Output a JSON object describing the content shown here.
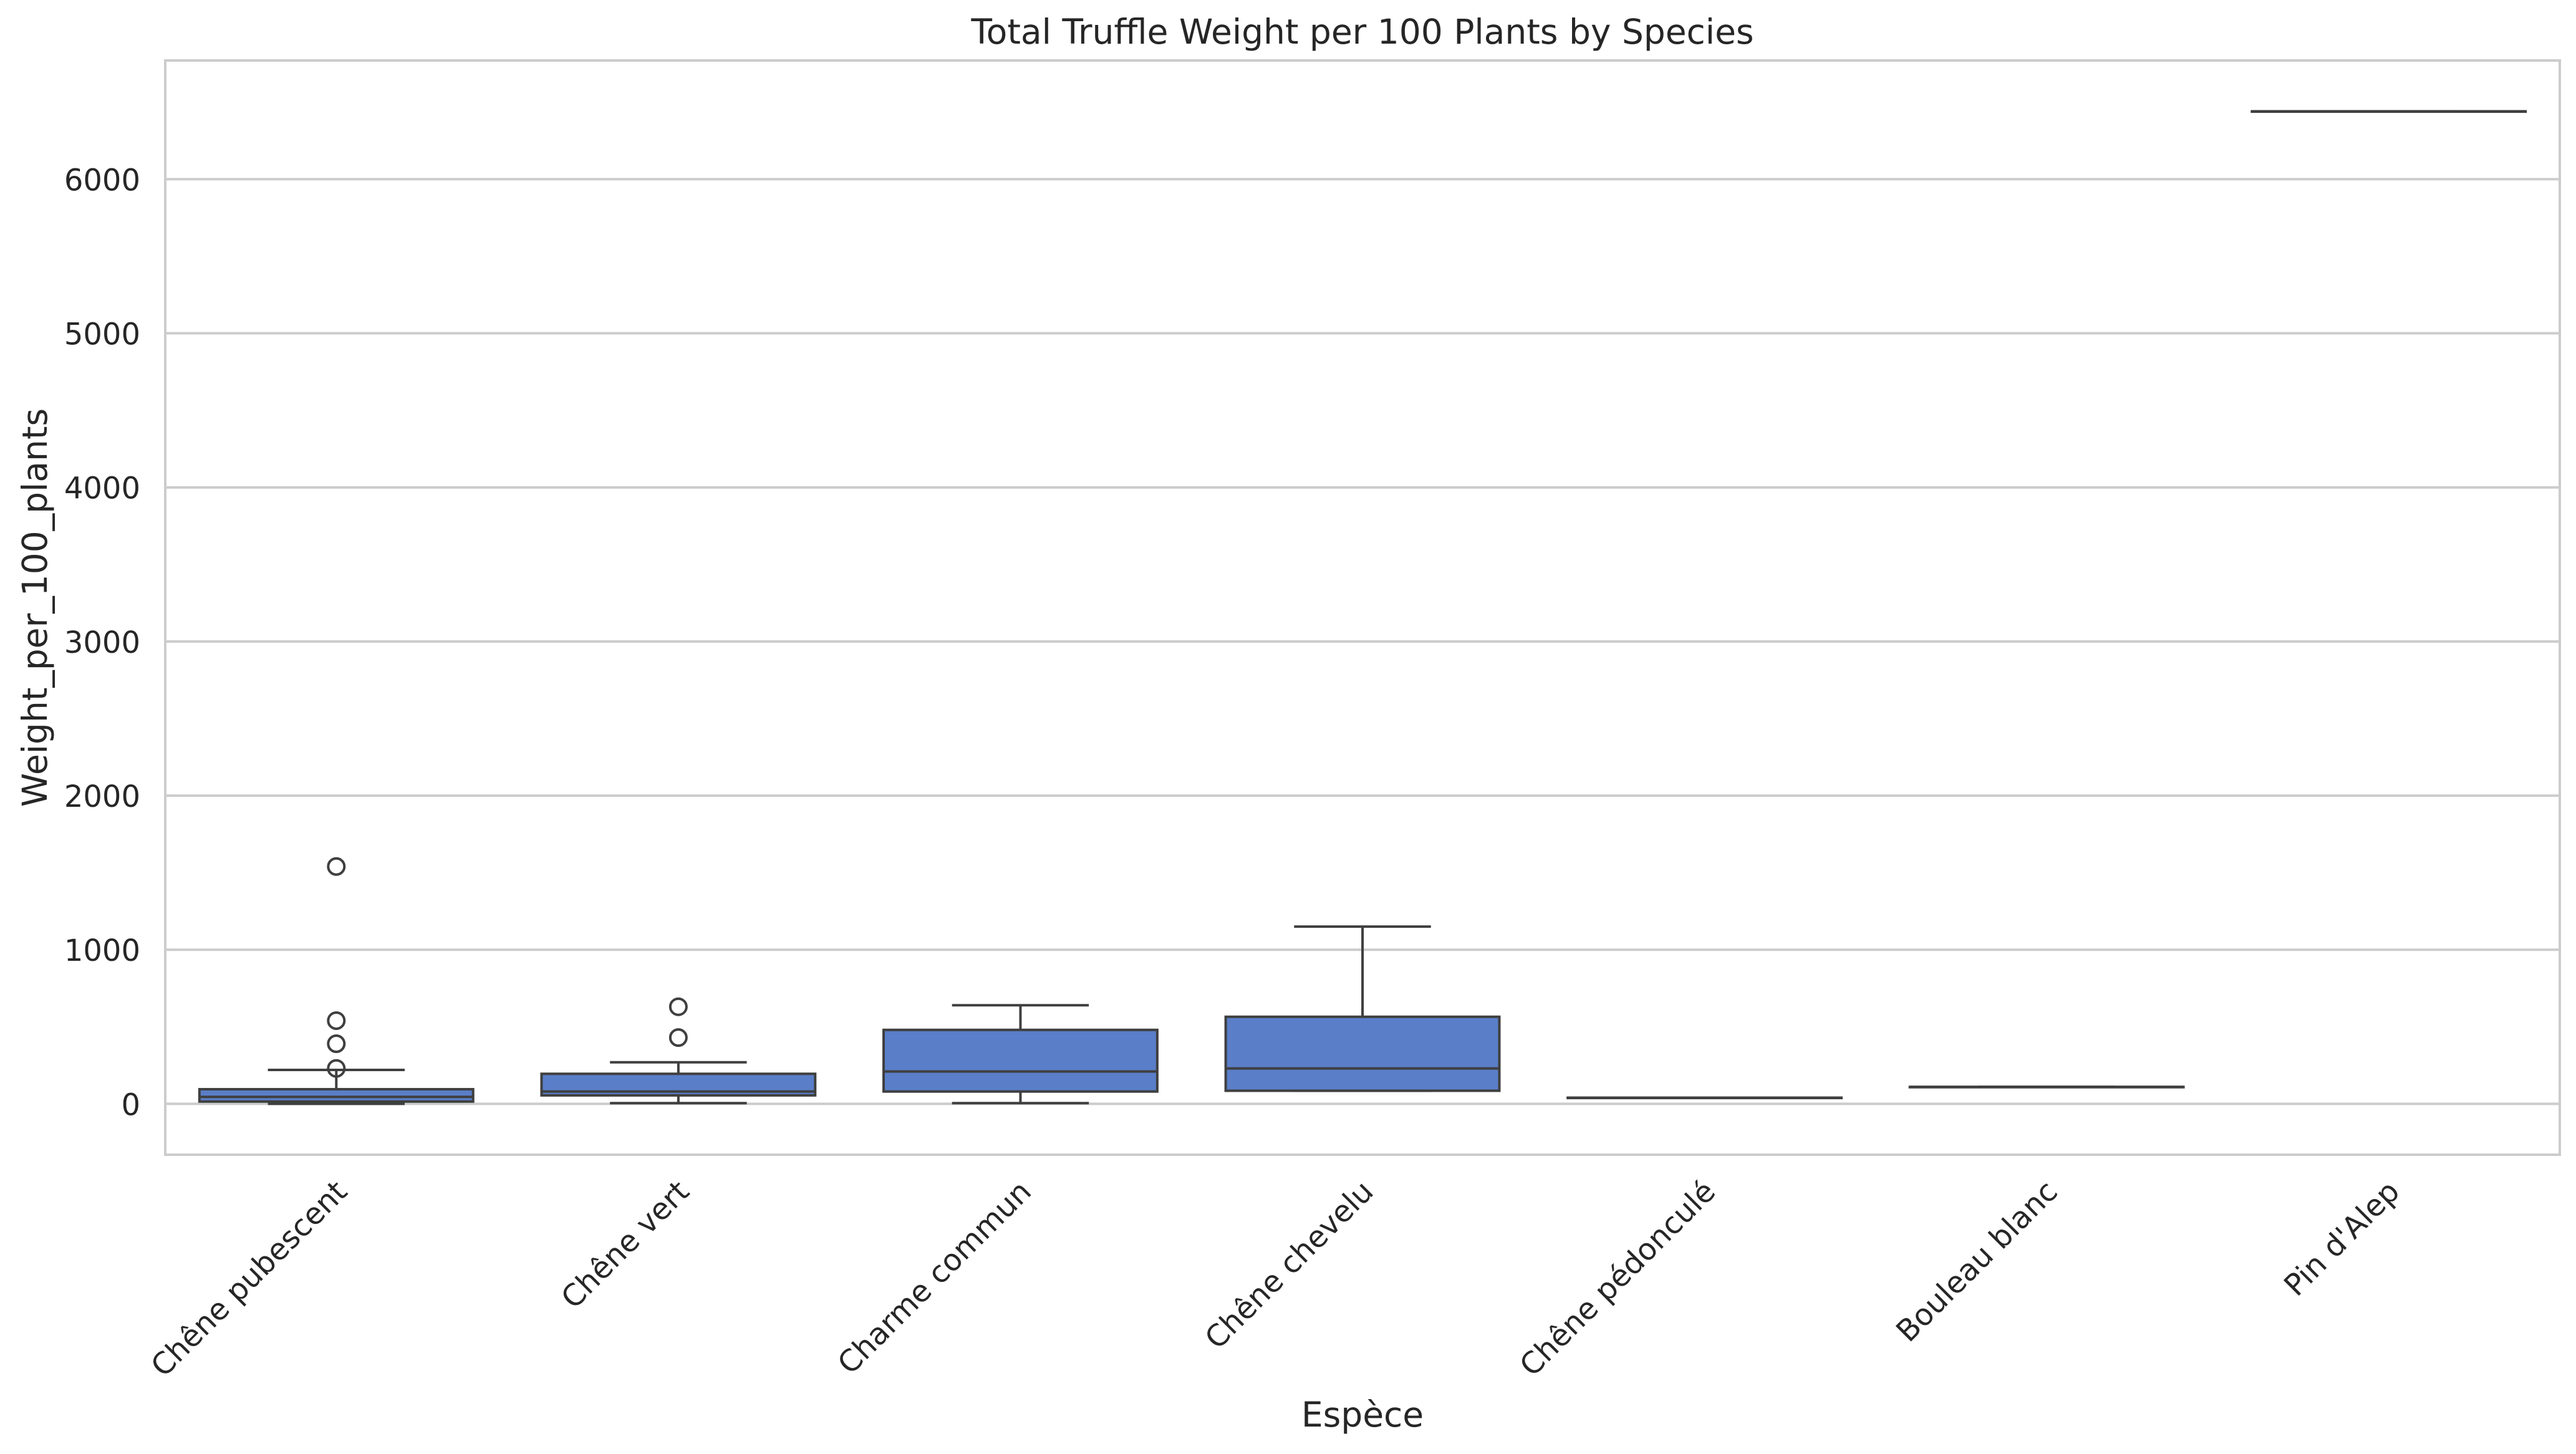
{
  "chart_data": {
    "type": "box",
    "title": "Total Truffle Weight per 100 Plants by Species",
    "xlabel": "Espèce",
    "ylabel": "Weight_per_100_plants",
    "ylim": [
      -330,
      6770
    ],
    "yticks": [
      0,
      1000,
      2000,
      3000,
      4000,
      5000,
      6000
    ],
    "grid": true,
    "box_color": "#5a7ec8",
    "line_color": "#3f3f3f",
    "grid_color": "#cccccc",
    "categories": [
      "Chêne pubescent",
      "Chêne vert",
      "Charme commun",
      "Chêne chevelu",
      "Chêne pédonculé",
      "Bouleau blanc",
      "Pin d'Alep"
    ],
    "boxes": [
      {
        "category": "Chêne pubescent",
        "whisker_low": 0,
        "q1": 15,
        "median": 45,
        "q3": 95,
        "whisker_high": 220,
        "outliers": [
          230,
          390,
          540,
          1540
        ]
      },
      {
        "category": "Chêne vert",
        "whisker_low": 5,
        "q1": 55,
        "median": 80,
        "q3": 195,
        "whisker_high": 270,
        "outliers": [
          430,
          630
        ]
      },
      {
        "category": "Charme commun",
        "whisker_low": 5,
        "q1": 80,
        "median": 210,
        "q3": 480,
        "whisker_high": 640,
        "outliers": []
      },
      {
        "category": "Chêne chevelu",
        "whisker_low": 85,
        "q1": 85,
        "median": 230,
        "q3": 565,
        "whisker_high": 1150,
        "outliers": []
      },
      {
        "category": "Chêne pédonculé",
        "whisker_low": 40,
        "q1": 40,
        "median": 40,
        "q3": 40,
        "whisker_high": 40,
        "outliers": []
      },
      {
        "category": "Bouleau blanc",
        "whisker_low": 110,
        "q1": 110,
        "median": 110,
        "q3": 110,
        "whisker_high": 110,
        "outliers": []
      },
      {
        "category": "Pin d'Alep",
        "whisker_low": 6440,
        "q1": 6440,
        "median": 6440,
        "q3": 6440,
        "whisker_high": 6440,
        "outliers": []
      }
    ]
  }
}
